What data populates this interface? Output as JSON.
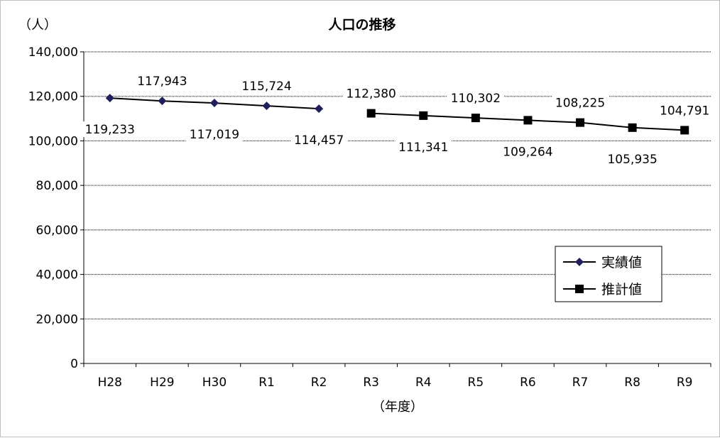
{
  "chart_data": {
    "type": "line",
    "title": "人口の推移",
    "ylabel": "（人）",
    "xlabel": "（年度）",
    "ylim": [
      0,
      140000
    ],
    "ytick_step": 20000,
    "ytick_labels": [
      "0",
      "20,000",
      "40,000",
      "60,000",
      "80,000",
      "100,000",
      "120,000",
      "140,000"
    ],
    "categories": [
      "H28",
      "H29",
      "H30",
      "R1",
      "R2",
      "R3",
      "R4",
      "R5",
      "R6",
      "R7",
      "R8",
      "R9"
    ],
    "grid": true,
    "legend_position": "right",
    "series": [
      {
        "name": "実績値",
        "marker": "diamond",
        "color": "#1f1f5c",
        "values": [
          119233,
          117943,
          117019,
          115724,
          114457,
          null,
          null,
          null,
          null,
          null,
          null,
          null
        ],
        "labels": [
          "119,233",
          "117,943",
          "117,019",
          "115,724",
          "114,457",
          null,
          null,
          null,
          null,
          null,
          null,
          null
        ],
        "label_side": [
          "below",
          "above",
          "below",
          "above",
          "below",
          null,
          null,
          null,
          null,
          null,
          null,
          null
        ]
      },
      {
        "name": "推計値",
        "marker": "square",
        "color": "#000000",
        "values": [
          null,
          null,
          null,
          null,
          null,
          112380,
          111341,
          110302,
          109264,
          108225,
          105935,
          104791
        ],
        "labels": [
          null,
          null,
          null,
          null,
          null,
          "112,380",
          "111,341",
          "110,302",
          "109,264",
          "108,225",
          "105,935",
          "104,791"
        ],
        "label_side": [
          null,
          null,
          null,
          null,
          null,
          "above",
          "below",
          "above",
          "below",
          "above",
          "below",
          "above"
        ]
      }
    ]
  }
}
